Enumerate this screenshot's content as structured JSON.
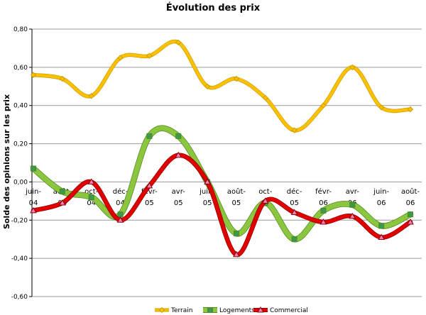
{
  "chart_data": {
    "type": "line",
    "title": "Évolution des prix",
    "ylabel": "Solde des opinions sur les prix",
    "xlabel": "",
    "ylim": [
      -0.6,
      0.8
    ],
    "ytick_labels": [
      "0,80",
      "0,60",
      "0,40",
      "0,20",
      "0,00",
      "-0,20",
      "-0,40",
      "-0,60"
    ],
    "categories": [
      "juin-04",
      "août-04",
      "oct-04",
      "déc-04",
      "févr-05",
      "avr-05",
      "juin-05",
      "août-05",
      "oct-05",
      "déc-05",
      "févr-06",
      "avr-06",
      "juin-06",
      "août-06"
    ],
    "x_tick_lines": [
      [
        "juin-",
        "04"
      ],
      [
        "août-",
        "04"
      ],
      [
        "oct-",
        "04"
      ],
      [
        "déc-",
        "04"
      ],
      [
        "févr-",
        "05"
      ],
      [
        "avr-",
        "05"
      ],
      [
        "juin-",
        "05"
      ],
      [
        "août-",
        "05"
      ],
      [
        "oct-",
        "05"
      ],
      [
        "déc-",
        "05"
      ],
      [
        "févr-",
        "06"
      ],
      [
        "avr-",
        "06"
      ],
      [
        "juin-",
        "06"
      ],
      [
        "août-",
        "06"
      ]
    ],
    "grid": true,
    "legend_position": "bottom",
    "series": [
      {
        "name": "Terrain",
        "color": "#FFC000",
        "outline": "#C8A000",
        "marker": "diamond",
        "values": [
          0.56,
          0.54,
          0.45,
          0.65,
          0.66,
          0.73,
          0.5,
          0.54,
          0.44,
          0.27,
          0.4,
          0.6,
          0.39,
          0.38
        ]
      },
      {
        "name": "Logements",
        "color": "#8CC63F",
        "outline": "#4E8A1E",
        "marker": "square",
        "values": [
          0.07,
          -0.05,
          -0.08,
          -0.17,
          0.24,
          0.24,
          0.0,
          -0.27,
          -0.11,
          -0.3,
          -0.15,
          -0.12,
          -0.23,
          -0.17
        ]
      },
      {
        "name": "Commercial",
        "color": "#E00000",
        "outline": "#900000",
        "marker": "triangle",
        "values": [
          -0.15,
          -0.11,
          0.0,
          -0.2,
          -0.02,
          0.14,
          0.0,
          -0.38,
          -0.1,
          -0.16,
          -0.21,
          -0.18,
          -0.29,
          -0.21
        ]
      }
    ]
  }
}
